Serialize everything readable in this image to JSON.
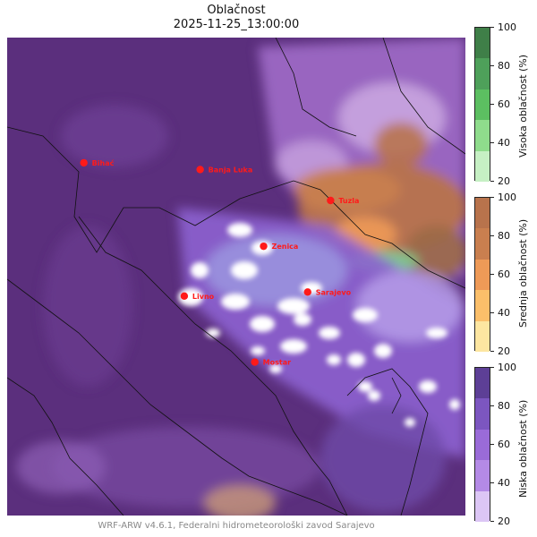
{
  "title": "Oblačnost",
  "subtitle": "2025-11-25_13:00:00",
  "footer": "WRF-ARW v4.6.1, Federalni hidrometeorološki zavod Sarajevo",
  "cities": [
    {
      "name": "Bihać",
      "lon": 15.87,
      "lat": 44.82
    },
    {
      "name": "Banja Luka",
      "lon": 17.19,
      "lat": 44.77
    },
    {
      "name": "Tuzla",
      "lon": 18.67,
      "lat": 44.54
    },
    {
      "name": "Zenica",
      "lon": 17.91,
      "lat": 44.2
    },
    {
      "name": "Livno",
      "lon": 17.01,
      "lat": 43.83
    },
    {
      "name": "Sarajevo",
      "lon": 18.41,
      "lat": 43.86
    },
    {
      "name": "Mostar",
      "lon": 17.81,
      "lat": 43.34
    }
  ],
  "colorbars": [
    {
      "label": "Visoka oblačnost (%)",
      "ticks": [
        "100",
        "80",
        "60",
        "40",
        "20"
      ],
      "colors": [
        "#c6f0c4",
        "#8fdc8c",
        "#5cbf61",
        "#4ea05a",
        "#3f7f48"
      ]
    },
    {
      "label": "Srednja oblačnost (%)",
      "ticks": [
        "100",
        "80",
        "60",
        "40",
        "20"
      ],
      "colors": [
        "#fde6a1",
        "#fbbf6a",
        "#ee9a57",
        "#c97f4f",
        "#b8734c"
      ]
    },
    {
      "label": "Niska oblačnost (%)",
      "ticks": [
        "100",
        "80",
        "60",
        "40",
        "20"
      ],
      "colors": [
        "#dcc6f5",
        "#b48ae6",
        "#9a6bd8",
        "#7c56c0",
        "#5d3f96"
      ]
    }
  ],
  "colors": {
    "base": "#5b2f7d",
    "city": "#ff1a1a"
  }
}
